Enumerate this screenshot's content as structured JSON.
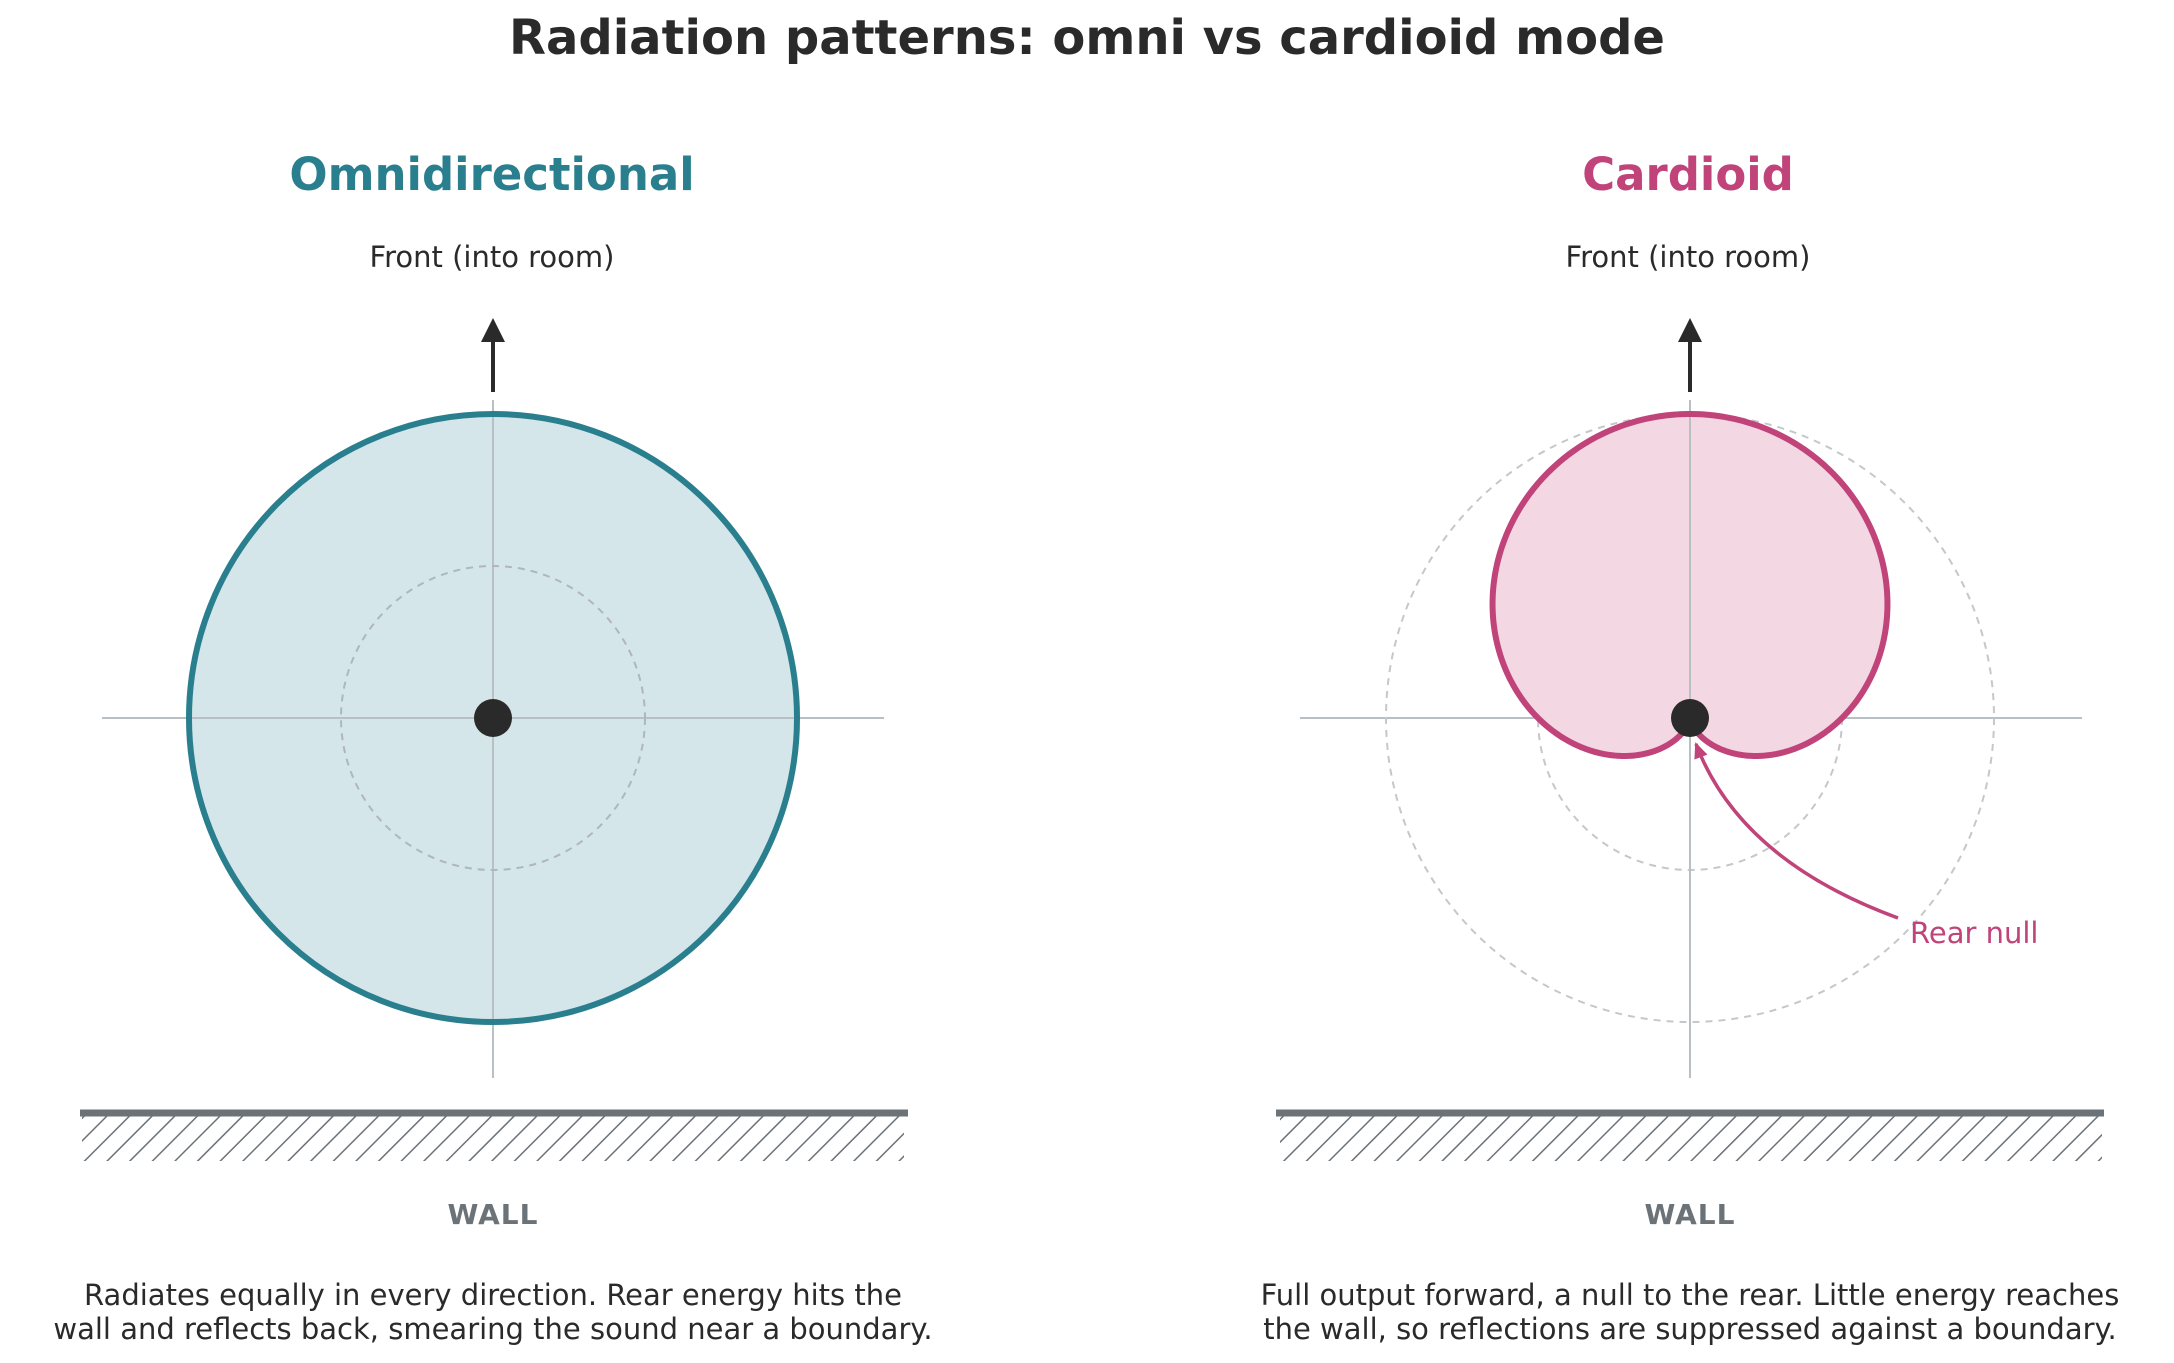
{
  "title": "Radiation patterns: omni vs cardioid mode",
  "colors": {
    "omni": "#2a7f8e",
    "omni_fill": "#d4e6e9",
    "cardioid": "#c0437a",
    "cardioid_fill": "#f3d8e3",
    "wall": "#6b7278",
    "axis": "#b8c0c6",
    "ink": "#2a2a2a"
  },
  "panels": [
    {
      "id": "omni",
      "heading": "Omnidirectional",
      "front_label": "Front  (into room)",
      "wall_label": "WALL",
      "caption_lines": [
        "Radiates equally in every direction. Rear energy hits the",
        "wall and reflects back, smearing the sound near a boundary."
      ],
      "pattern": "circle"
    },
    {
      "id": "cardioid",
      "heading": "Cardioid",
      "front_label": "Front  (into room)",
      "wall_label": "WALL",
      "caption_lines": [
        "Full output forward, a null to the rear. Little energy reaches",
        "the wall, so reflections are suppressed against a boundary."
      ],
      "pattern": "cardioid",
      "annotation": "Rear null"
    }
  ]
}
